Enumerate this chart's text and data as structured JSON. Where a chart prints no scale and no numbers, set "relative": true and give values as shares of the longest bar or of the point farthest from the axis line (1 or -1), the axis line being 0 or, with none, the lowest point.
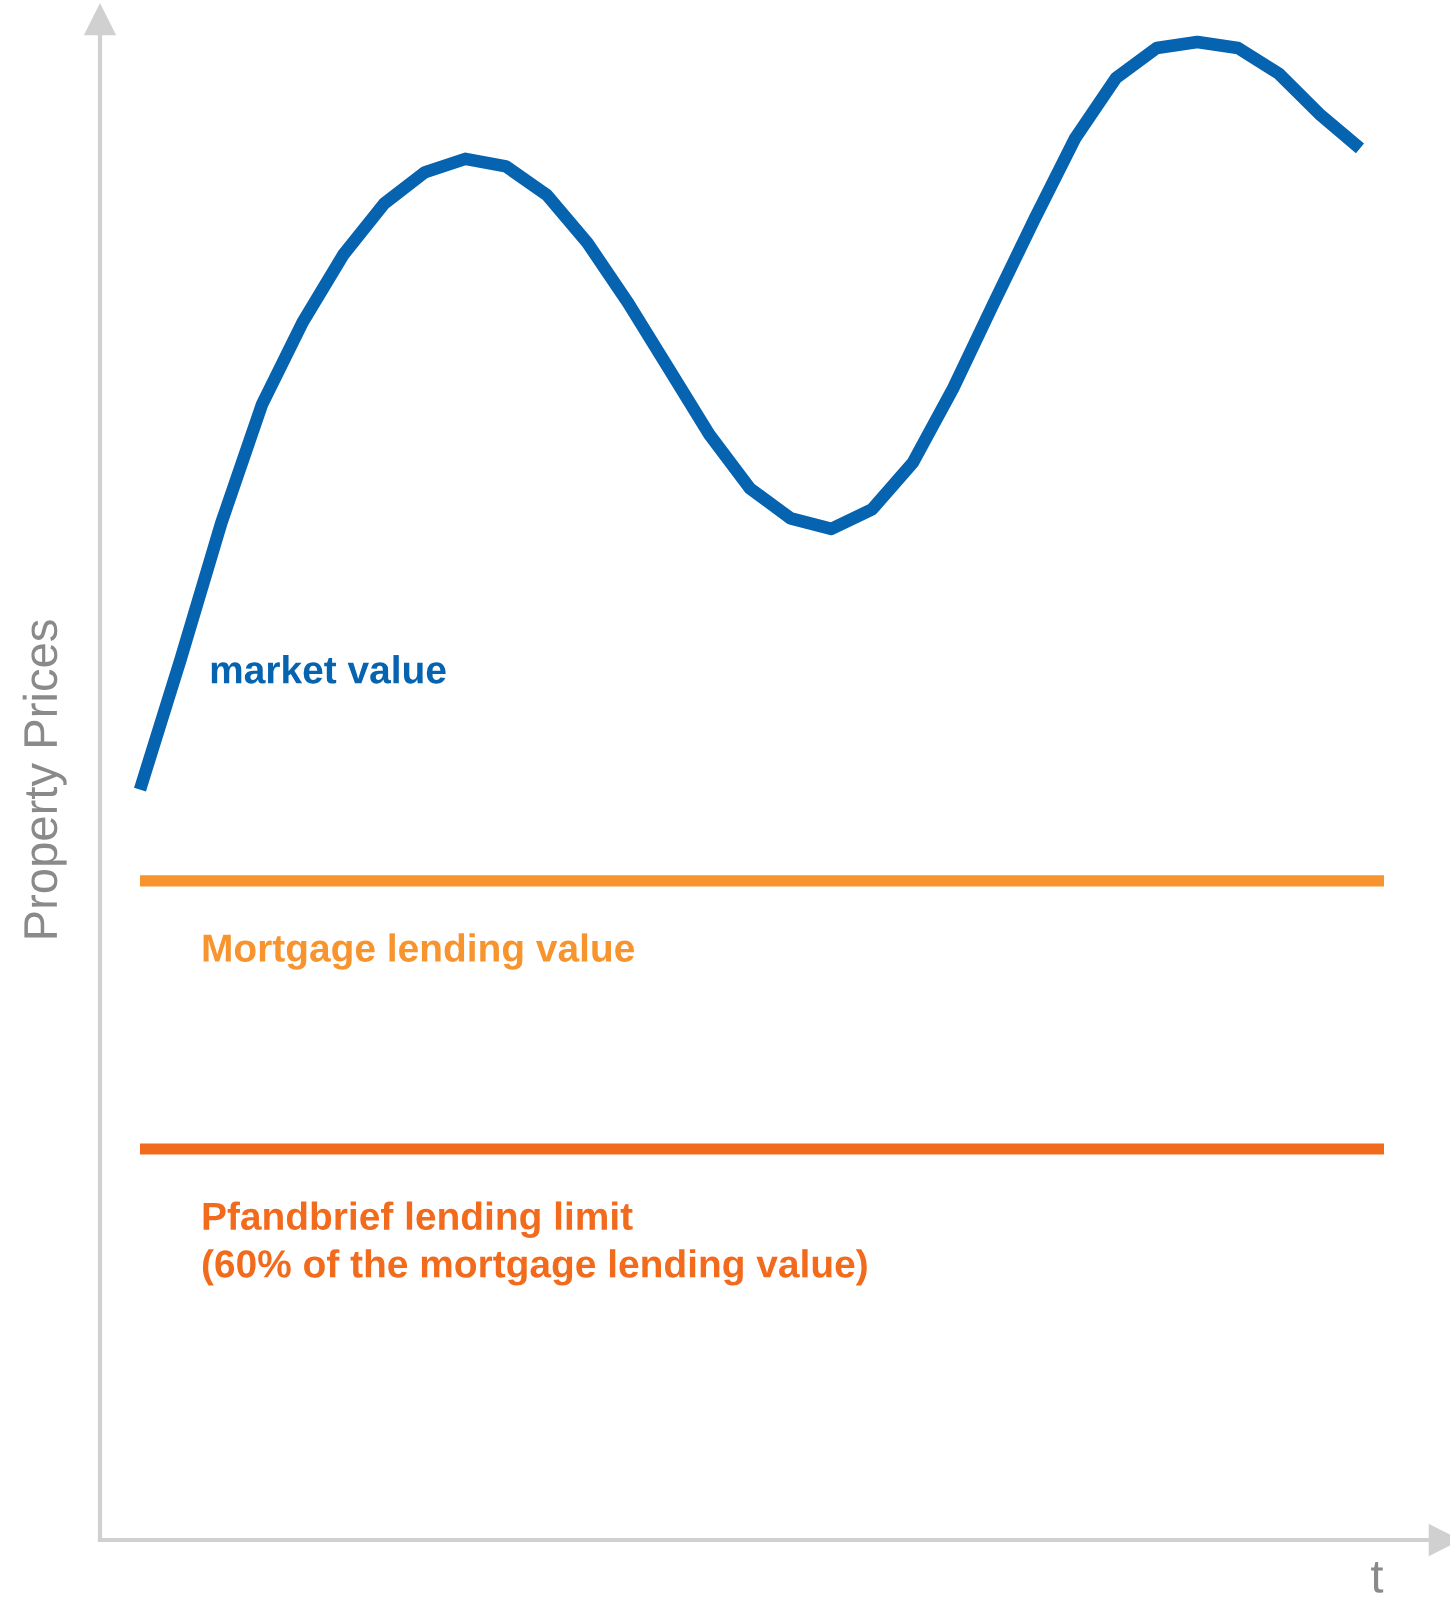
{
  "chart_data": {
    "type": "line",
    "relative": true,
    "xlabel": "t",
    "ylabel": "Property Prices",
    "categories": [
      null,
      null,
      null,
      null,
      null,
      null,
      null,
      null,
      null,
      null,
      null,
      null,
      null,
      null,
      null,
      null,
      null,
      null,
      null,
      null,
      null,
      null,
      null,
      null,
      null,
      null,
      null,
      null,
      null,
      null,
      null
    ],
    "series": [
      {
        "name": "market value",
        "color": "#0563b0",
        "values": [
          0.501,
          0.588,
          0.679,
          0.758,
          0.813,
          0.858,
          0.892,
          0.913,
          0.922,
          0.917,
          0.898,
          0.866,
          0.826,
          0.782,
          0.738,
          0.702,
          0.682,
          0.675,
          0.688,
          0.719,
          0.769,
          0.826,
          0.882,
          0.936,
          0.976,
          0.996,
          1.0,
          0.996,
          0.979,
          0.952,
          0.929
        ]
      }
    ],
    "ref_lines": [
      {
        "axis": "y",
        "value": 0.44,
        "label": "Mortgage lending value",
        "color": "#f7942d"
      },
      {
        "axis": "y",
        "value": 0.261,
        "label": "Pfandbrief lending limit\n(60% of the mortgage lending value)",
        "color": "#f26a1b"
      }
    ],
    "grid": false,
    "legend": false,
    "marker": "none",
    "line_style": "solid"
  }
}
